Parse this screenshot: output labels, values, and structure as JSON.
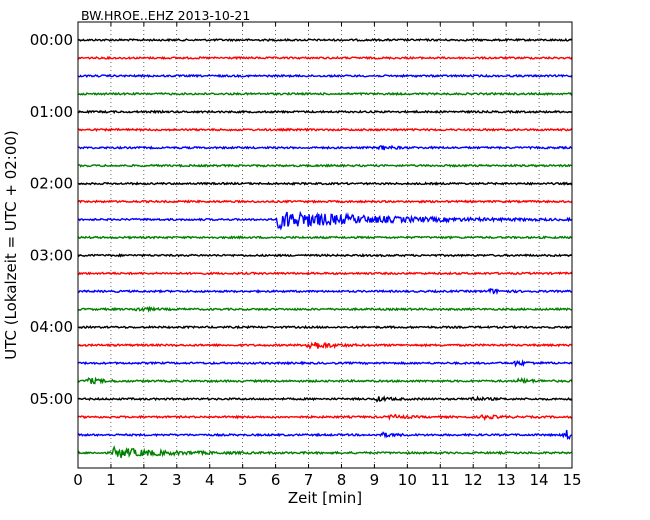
{
  "chart_data": {
    "type": "line",
    "title": "BW.HROE..EHZ 2013-10-21",
    "xlabel": "Zeit  [min]",
    "ylabel": "UTC (Lokalzeit = UTC + 02:00)",
    "xlim": [
      0,
      15
    ],
    "x_ticks": [
      0,
      1,
      2,
      3,
      4,
      5,
      6,
      7,
      8,
      9,
      10,
      11,
      12,
      13,
      14,
      15
    ],
    "y_tick_labels": [
      "00:00",
      "01:00",
      "02:00",
      "03:00",
      "04:00",
      "05:00"
    ],
    "grid": "vertical dotted",
    "legend": "none",
    "colors": [
      "#000000",
      "#ff0000",
      "#0000ff",
      "#008000"
    ],
    "traces": [
      {
        "start": "00:00",
        "color": "#000000",
        "events": []
      },
      {
        "start": "00:15",
        "color": "#ff0000",
        "events": []
      },
      {
        "start": "00:30",
        "color": "#0000ff",
        "events": []
      },
      {
        "start": "00:45",
        "color": "#008000",
        "events": []
      },
      {
        "start": "01:00",
        "color": "#000000",
        "events": []
      },
      {
        "start": "01:15",
        "color": "#ff0000",
        "events": []
      },
      {
        "start": "01:30",
        "color": "#0000ff",
        "events": [
          {
            "t": 9.2,
            "amp": 2
          }
        ]
      },
      {
        "start": "01:45",
        "color": "#008000",
        "events": []
      },
      {
        "start": "02:00",
        "color": "#000000",
        "events": []
      },
      {
        "start": "02:15",
        "color": "#ff0000",
        "events": []
      },
      {
        "start": "02:30",
        "color": "#0000ff",
        "events": [
          {
            "t": 6.1,
            "amp": 9,
            "dur": 2.5
          }
        ]
      },
      {
        "start": "02:45",
        "color": "#008000",
        "events": []
      },
      {
        "start": "03:00",
        "color": "#000000",
        "events": []
      },
      {
        "start": "03:15",
        "color": "#ff0000",
        "events": []
      },
      {
        "start": "03:30",
        "color": "#0000ff",
        "events": [
          {
            "t": 12.5,
            "amp": 2
          }
        ]
      },
      {
        "start": "03:45",
        "color": "#008000",
        "events": [
          {
            "t": 1.8,
            "amp": 2
          }
        ]
      },
      {
        "start": "04:00",
        "color": "#000000",
        "events": []
      },
      {
        "start": "04:15",
        "color": "#ff0000",
        "events": [
          {
            "t": 7.0,
            "amp": 5,
            "dur": 0.5
          }
        ]
      },
      {
        "start": "04:30",
        "color": "#0000ff",
        "events": [
          {
            "t": 13.3,
            "amp": 2
          }
        ]
      },
      {
        "start": "04:45",
        "color": "#008000",
        "events": [
          {
            "t": 0.3,
            "amp": 3
          },
          {
            "t": 13.4,
            "amp": 2
          }
        ]
      },
      {
        "start": "05:00",
        "color": "#000000",
        "events": [
          {
            "t": 9.1,
            "amp": 2
          },
          {
            "t": 11.9,
            "amp": 2
          }
        ]
      },
      {
        "start": "05:15",
        "color": "#ff0000",
        "events": [
          {
            "t": 9.5,
            "amp": 2
          },
          {
            "t": 12.3,
            "amp": 2
          }
        ]
      },
      {
        "start": "05:30",
        "color": "#0000ff",
        "events": [
          {
            "t": 9.2,
            "amp": 2
          },
          {
            "t": 14.8,
            "amp": 5,
            "dur": 0.3
          }
        ]
      },
      {
        "start": "05:45",
        "color": "#008000",
        "events": [
          {
            "t": 1.1,
            "amp": 5,
            "dur": 1.3
          }
        ]
      }
    ]
  }
}
